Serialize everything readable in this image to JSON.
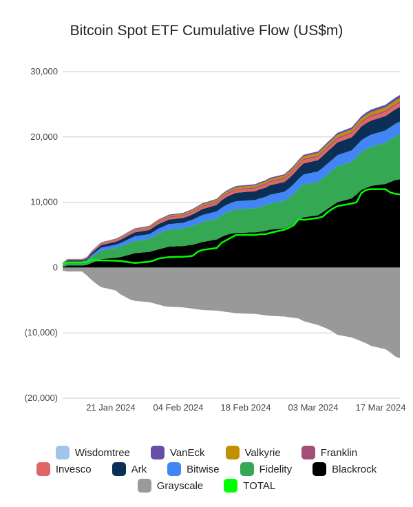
{
  "chart_data": {
    "type": "area",
    "stacked": true,
    "title": "Bitcoin Spot ETF Cumulative Flow (US$m)",
    "xlabel": "",
    "ylabel": "",
    "ylim": [
      -20000,
      30000
    ],
    "yticks": [
      30000,
      20000,
      10000,
      0,
      -10000,
      -20000
    ],
    "ytick_labels": [
      "30,000",
      "20,000",
      "10,000",
      "0",
      "(10,000)",
      "(20,000)"
    ],
    "xtick_labels": [
      "21 Jan 2024",
      "04 Feb 2024",
      "18 Feb 2024",
      "03 Mar 2024",
      "17 Mar 2024"
    ],
    "xtick_days": [
      10,
      24,
      38,
      52,
      66
    ],
    "x_start": "2024-01-11",
    "x_end": "2024-03-21",
    "grid": true,
    "legend_position": "bottom",
    "days": [
      0,
      1,
      4,
      5,
      6,
      7,
      8,
      11,
      12,
      13,
      14,
      15,
      18,
      19,
      20,
      21,
      22,
      25,
      26,
      27,
      28,
      29,
      32,
      33,
      34,
      35,
      36,
      40,
      41,
      42,
      43,
      46,
      47,
      48,
      49,
      50,
      53,
      54,
      55,
      56,
      57,
      60,
      61,
      62,
      63,
      64,
      67,
      68,
      69,
      70
    ],
    "grayscale": [
      -500,
      -600,
      -600,
      -1200,
      -1900,
      -2500,
      -3000,
      -3500,
      -4100,
      -4500,
      -4900,
      -5100,
      -5300,
      -5500,
      -5700,
      -5900,
      -6000,
      -6100,
      -6200,
      -6300,
      -6400,
      -6500,
      -6600,
      -6700,
      -6800,
      -6900,
      -7000,
      -7100,
      -7200,
      -7300,
      -7400,
      -7500,
      -7600,
      -7700,
      -7800,
      -8200,
      -8800,
      -9100,
      -9400,
      -9800,
      -10300,
      -10700,
      -11000,
      -11300,
      -11600,
      -12000,
      -12500,
      -13000,
      -13600,
      -13900
    ],
    "series": [
      {
        "name": "Blackrock",
        "color": "#000000",
        "values": [
          100,
          300,
          300,
          400,
          700,
          1000,
          1300,
          1500,
          1600,
          1800,
          2000,
          2200,
          2400,
          2600,
          2800,
          3000,
          3200,
          3300,
          3400,
          3500,
          3700,
          3900,
          4300,
          4700,
          5000,
          5200,
          5300,
          5400,
          5500,
          5600,
          5800,
          6000,
          6300,
          6700,
          7300,
          7700,
          8000,
          8500,
          9000,
          9500,
          10000,
          10600,
          11200,
          11900,
          12200,
          12500,
          12800,
          13100,
          13400,
          13500
        ]
      },
      {
        "name": "Fidelity",
        "color": "#34a853",
        "values": [
          200,
          400,
          400,
          500,
          900,
          1100,
          1300,
          1500,
          1600,
          1700,
          1800,
          1900,
          2000,
          2200,
          2400,
          2500,
          2600,
          2700,
          2800,
          2900,
          3000,
          3100,
          3200,
          3300,
          3400,
          3500,
          3600,
          3700,
          3800,
          3900,
          4000,
          4200,
          4400,
          4600,
          4800,
          5000,
          5100,
          5200,
          5300,
          5400,
          5500,
          5600,
          5700,
          5800,
          5900,
          6000,
          6300,
          6500,
          6700,
          6900
        ]
      },
      {
        "name": "Bitwise",
        "color": "#4285f4",
        "values": [
          150,
          200,
          200,
          250,
          300,
          400,
          450,
          500,
          550,
          600,
          650,
          700,
          700,
          750,
          800,
          800,
          850,
          850,
          900,
          950,
          1000,
          1050,
          1100,
          1150,
          1200,
          1200,
          1250,
          1250,
          1300,
          1300,
          1350,
          1400,
          1450,
          1500,
          1500,
          1550,
          1600,
          1600,
          1650,
          1650,
          1700,
          1750,
          1800,
          1800,
          1850,
          1850,
          1900,
          1900,
          1900,
          1950
        ]
      },
      {
        "name": "Ark",
        "color": "#0b2f57",
        "values": [
          150,
          200,
          200,
          200,
          300,
          350,
          400,
          450,
          500,
          550,
          600,
          600,
          650,
          700,
          700,
          700,
          700,
          750,
          750,
          800,
          850,
          900,
          1000,
          1150,
          1200,
          1250,
          1300,
          1350,
          1400,
          1400,
          1450,
          1500,
          1550,
          1600,
          1650,
          1700,
          1750,
          1800,
          1850,
          1900,
          1950,
          2000,
          2050,
          2100,
          2150,
          2150,
          2200,
          2200,
          2200,
          2250
        ]
      },
      {
        "name": "Invesco",
        "color": "#e06666",
        "values": [
          100,
          120,
          120,
          140,
          160,
          180,
          200,
          220,
          230,
          240,
          250,
          260,
          270,
          280,
          290,
          300,
          300,
          310,
          320,
          330,
          340,
          350,
          360,
          370,
          380,
          390,
          400,
          410,
          420,
          430,
          440,
          450,
          460,
          470,
          480,
          490,
          500,
          510,
          520,
          530,
          540,
          550,
          560,
          570,
          580,
          590,
          600,
          600,
          600,
          600
        ]
      },
      {
        "name": "Franklin",
        "color": "#a64d79",
        "values": [
          20,
          30,
          30,
          40,
          50,
          60,
          70,
          80,
          90,
          100,
          100,
          110,
          120,
          120,
          130,
          140,
          140,
          150,
          150,
          150,
          160,
          160,
          170,
          170,
          170,
          180,
          180,
          180,
          190,
          190,
          190,
          200,
          200,
          200,
          210,
          210,
          210,
          220,
          220,
          220,
          220,
          230,
          230,
          230,
          230,
          240,
          240,
          240,
          240,
          250
        ]
      },
      {
        "name": "Valkyrie",
        "color": "#bf9000",
        "values": [
          20,
          30,
          30,
          40,
          50,
          60,
          70,
          80,
          90,
          100,
          110,
          120,
          130,
          140,
          150,
          160,
          170,
          180,
          190,
          200,
          210,
          220,
          230,
          240,
          250,
          260,
          270,
          280,
          290,
          300,
          310,
          320,
          330,
          340,
          350,
          360,
          370,
          380,
          390,
          400,
          410,
          420,
          430,
          440,
          450,
          460,
          470,
          480,
          490,
          500
        ]
      },
      {
        "name": "VanEck",
        "color": "#674ea7",
        "values": [
          30,
          40,
          40,
          50,
          60,
          70,
          80,
          90,
          100,
          100,
          110,
          110,
          120,
          120,
          130,
          130,
          140,
          140,
          150,
          150,
          160,
          160,
          170,
          170,
          180,
          180,
          190,
          190,
          200,
          200,
          210,
          210,
          220,
          230,
          240,
          250,
          260,
          270,
          280,
          290,
          300,
          320,
          340,
          360,
          380,
          400,
          420,
          440,
          460,
          480
        ]
      },
      {
        "name": "Wisdomtree",
        "color": "#9fc5e8",
        "values": [
          5,
          5,
          5,
          5,
          10,
          10,
          10,
          10,
          10,
          10,
          10,
          10,
          10,
          10,
          15,
          15,
          15,
          15,
          15,
          15,
          15,
          15,
          15,
          20,
          20,
          20,
          20,
          20,
          20,
          20,
          20,
          20,
          20,
          20,
          20,
          20,
          20,
          20,
          25,
          25,
          25,
          25,
          25,
          25,
          25,
          25,
          25,
          25,
          25,
          25
        ]
      }
    ],
    "grayscale_series": {
      "name": "Grayscale",
      "color": "#999999"
    },
    "total_series": {
      "name": "TOTAL",
      "color": "#00ff00",
      "values": [
        500,
        800,
        800,
        850,
        1200,
        1100,
        1100,
        1050,
        1000,
        900,
        800,
        700,
        900,
        1100,
        1400,
        1500,
        1600,
        1650,
        1700,
        1800,
        2400,
        2700,
        3000,
        3800,
        4200,
        4600,
        5000,
        5000,
        5100,
        5100,
        5300,
        5800,
        6100,
        6500,
        7400,
        7300,
        7600,
        7800,
        8500,
        9000,
        9400,
        9800,
        10000,
        11400,
        11900,
        12000,
        12000,
        11500,
        11300,
        11200
      ]
    },
    "legend_rows": [
      [
        "Wisdomtree",
        "VanEck",
        "Valkyrie",
        "Franklin"
      ],
      [
        "Invesco",
        "Ark",
        "Bitwise",
        "Fidelity",
        "Blackrock"
      ],
      [
        "Grayscale",
        "TOTAL"
      ]
    ]
  }
}
